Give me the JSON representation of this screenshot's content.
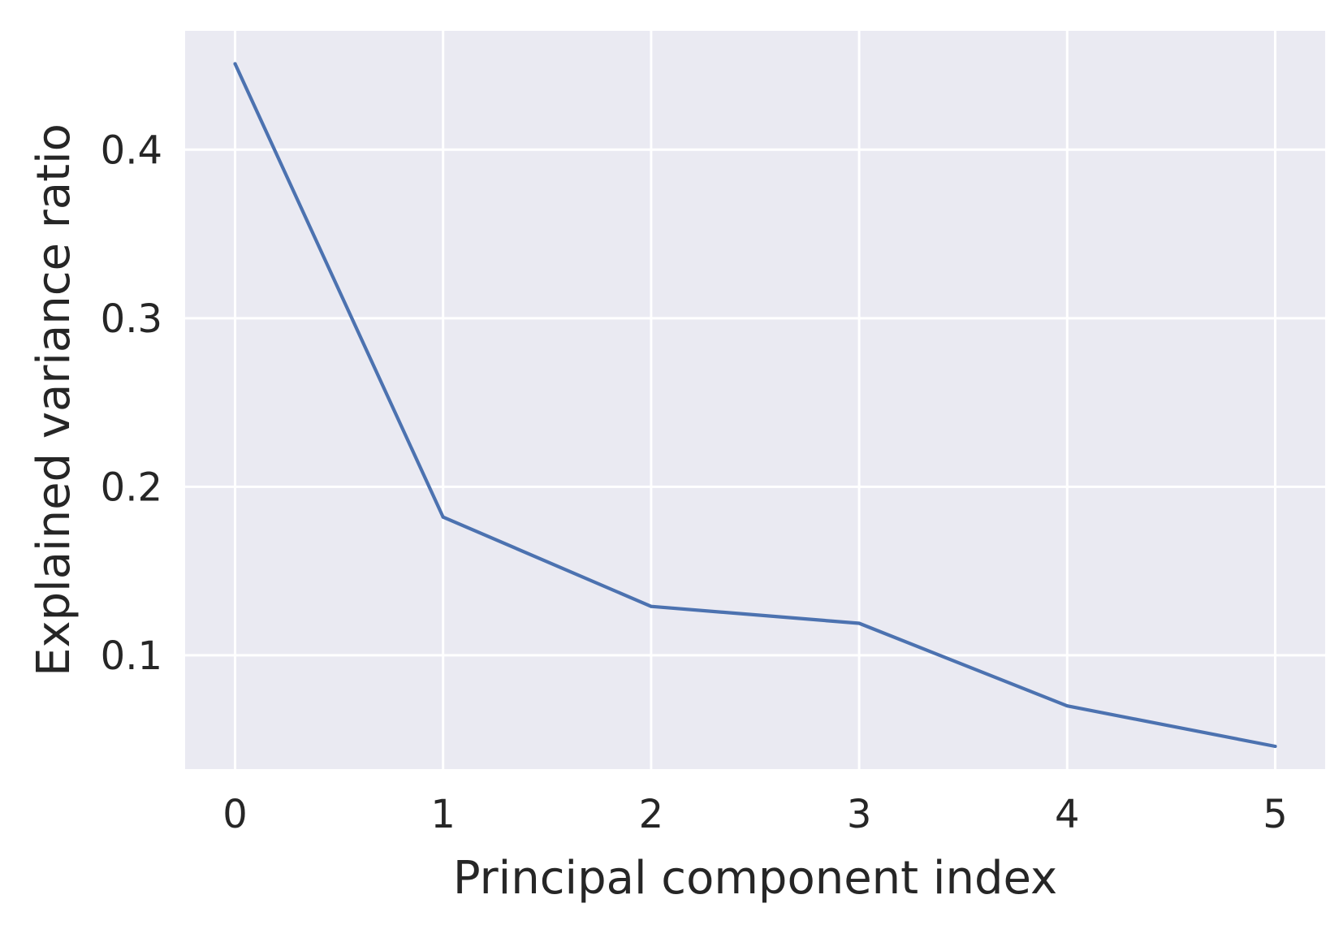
{
  "chart_data": {
    "type": "line",
    "title": "",
    "xlabel": "Principal component index",
    "ylabel": "Explained variance ratio",
    "x": [
      0,
      1,
      2,
      3,
      4,
      5
    ],
    "series": [
      {
        "values": [
          0.451,
          0.182,
          0.129,
          0.119,
          0.07,
          0.046
        ],
        "color": "#4c72b0"
      }
    ],
    "xlim": [
      -0.24,
      5.24
    ],
    "ylim": [
      0.0325,
      0.4705
    ],
    "xticks": [
      0,
      1,
      2,
      3,
      4,
      5
    ],
    "xtick_labels": [
      "0",
      "1",
      "2",
      "3",
      "4",
      "5"
    ],
    "yticks": [
      0.1,
      0.2,
      0.3,
      0.4
    ],
    "ytick_labels": [
      "0.1",
      "0.2",
      "0.3",
      "0.4"
    ],
    "grid": true,
    "legend": "none",
    "style": {
      "plot_background": "#eaeaf2",
      "grid_color": "#ffffff",
      "text_color": "#262626"
    }
  }
}
